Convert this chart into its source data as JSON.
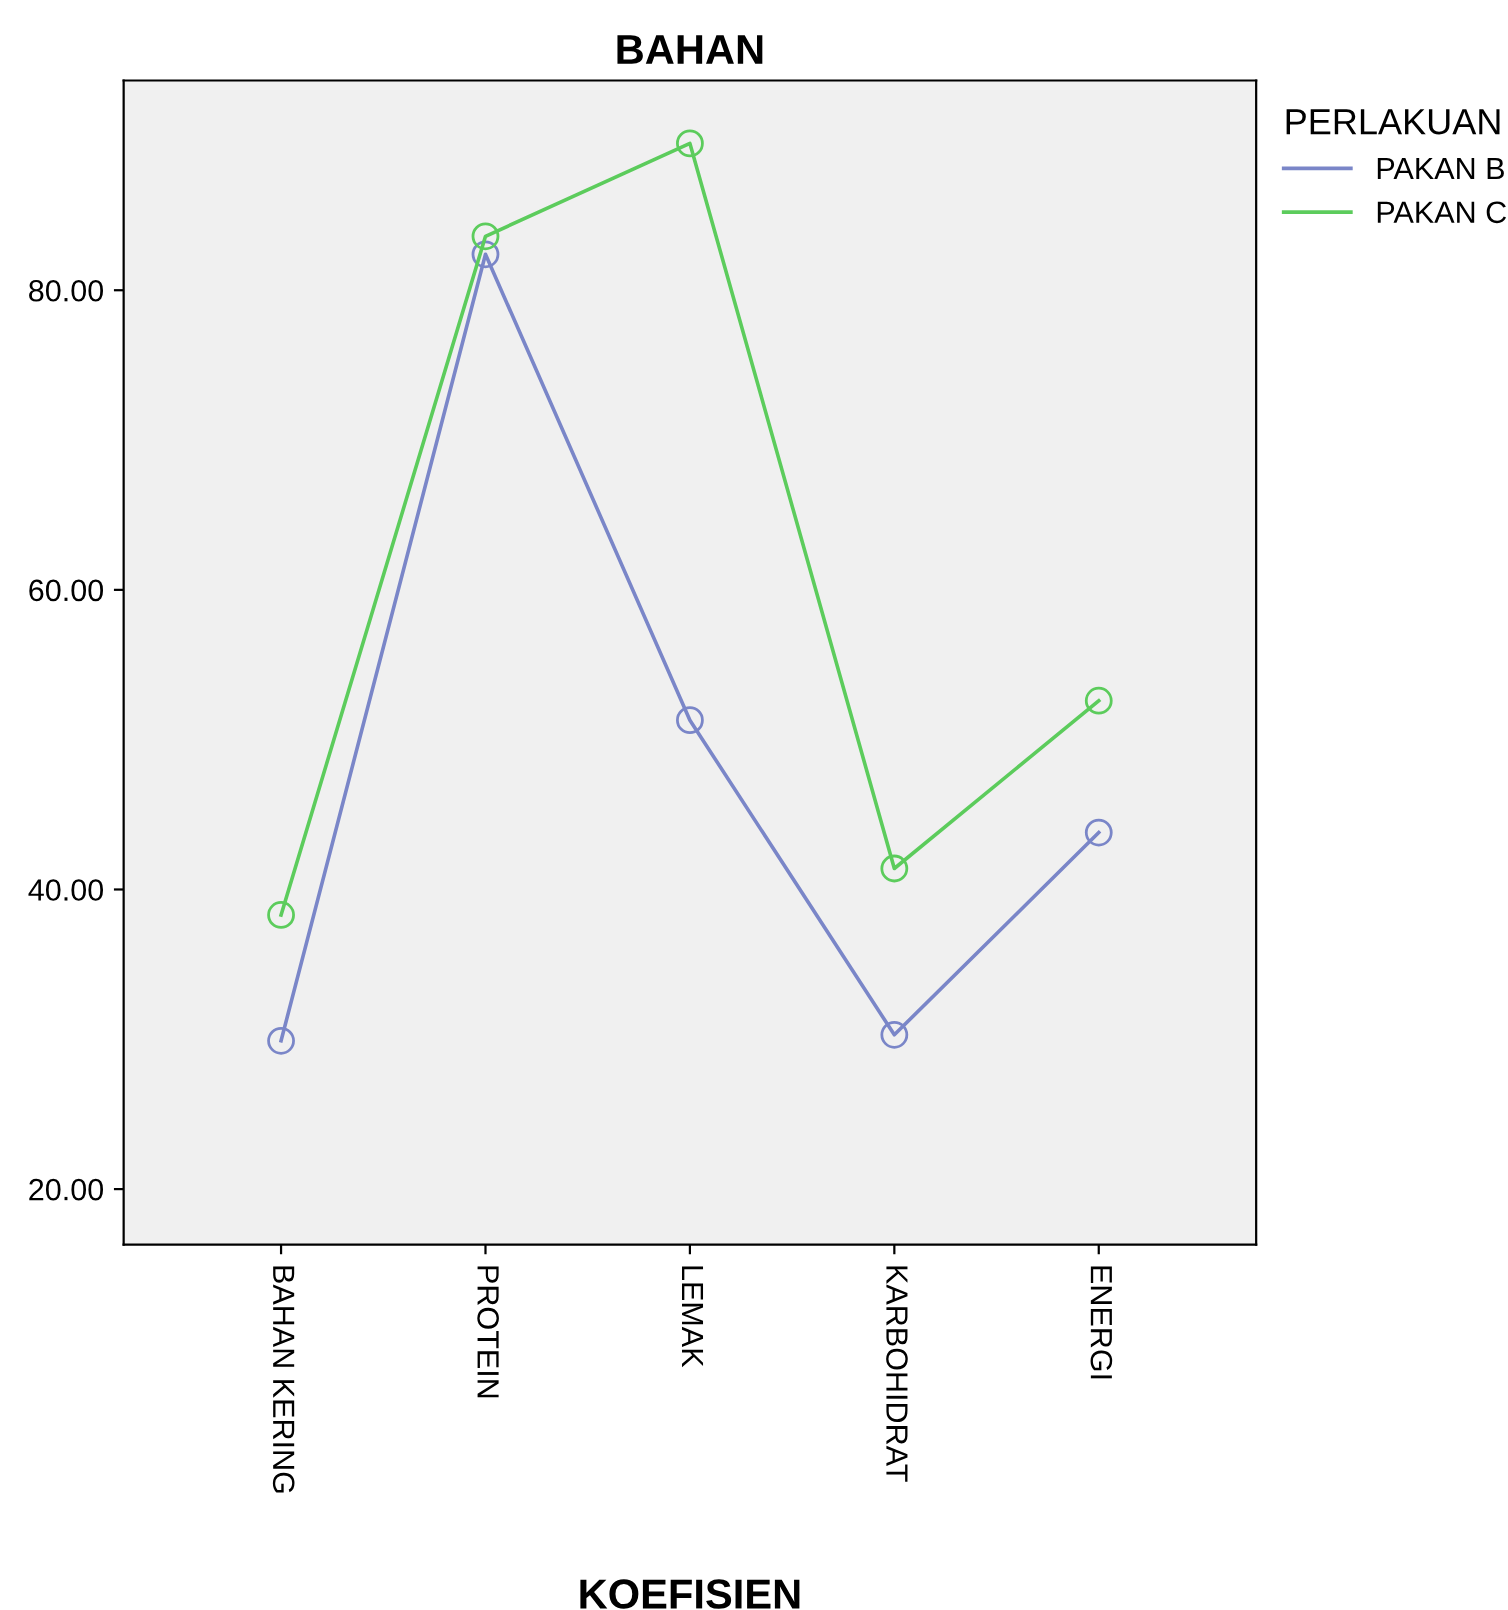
{
  "chart_data": {
    "type": "line",
    "title": "BAHAN",
    "xlabel": "KOEFISIEN",
    "legend_title": "PERLAKUAN",
    "categories": [
      "BAHAN KERING",
      "PROTEIN",
      "LEMAK",
      "KARBOHIDRAT",
      "ENERGI"
    ],
    "series": [
      {
        "name": "PAKAN B",
        "color": "#7a86c8",
        "values": [
          29.9,
          82.4,
          51.3,
          30.3,
          43.8
        ]
      },
      {
        "name": "PAKAN C",
        "color": "#5ccc5c",
        "values": [
          38.3,
          83.6,
          89.8,
          41.4,
          52.6
        ]
      }
    ],
    "ylim": [
      16.3,
      94.0
    ],
    "yticks": [
      {
        "value": 20,
        "label": "20.00"
      },
      {
        "value": 40,
        "label": "40.00"
      },
      {
        "value": 60,
        "label": "60.00"
      },
      {
        "value": 80,
        "label": "80.00"
      }
    ],
    "marker": "circle",
    "line_style": "solid",
    "legend": "right",
    "grid": false
  }
}
